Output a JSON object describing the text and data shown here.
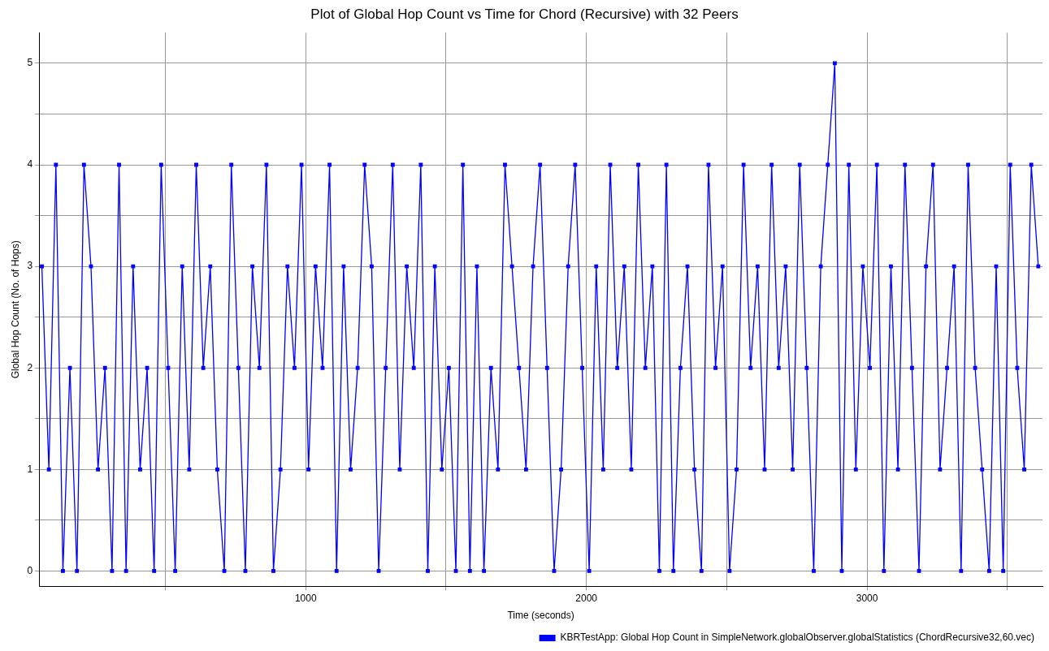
{
  "chart_data": {
    "type": "line",
    "title": "Plot of Global Hop Count vs Time for Chord (Recursive) with 32 Peers",
    "xlabel": "Time (seconds)",
    "ylabel": "Global Hop Count (No. of Hops)",
    "xlim": [
      50,
      3625
    ],
    "xticks": [
      {
        "value": 500,
        "label": null
      },
      1000,
      {
        "value": 1500,
        "label": null
      },
      2000,
      {
        "value": 2500,
        "label": null
      },
      3000,
      {
        "value": 3500,
        "label": null
      }
    ],
    "ylim": [
      -0.15,
      5.3
    ],
    "yticks": [
      0,
      {
        "value": 0.5,
        "label": null
      },
      1,
      {
        "value": 1.5,
        "label": null
      },
      2,
      {
        "value": 2.5,
        "label": null
      },
      3,
      {
        "value": 3.5,
        "label": null
      },
      4,
      {
        "value": 4.5,
        "label": null
      },
      5
    ],
    "grid": true,
    "legend": "bottom right",
    "marker": "square",
    "line_style": "solid",
    "x": [
      60,
      85,
      110,
      135,
      160,
      185,
      210,
      235,
      260,
      285,
      310,
      335,
      360,
      385,
      410,
      435,
      460,
      485,
      510,
      535,
      560,
      585,
      610,
      635,
      660,
      685,
      710,
      735,
      760,
      785,
      810,
      835,
      860,
      885,
      910,
      935,
      960,
      985,
      1010,
      1035,
      1060,
      1085,
      1110,
      1135,
      1160,
      1185,
      1210,
      1235,
      1260,
      1285,
      1310,
      1335,
      1360,
      1385,
      1410,
      1435,
      1460,
      1485,
      1510,
      1535,
      1560,
      1585,
      1610,
      1635,
      1660,
      1685,
      1710,
      1735,
      1760,
      1785,
      1810,
      1835,
      1860,
      1885,
      1910,
      1935,
      1960,
      1985,
      2010,
      2035,
      2060,
      2085,
      2110,
      2135,
      2160,
      2185,
      2210,
      2235,
      2260,
      2285,
      2310,
      2335,
      2360,
      2385,
      2410,
      2435,
      2460,
      2485,
      2510,
      2535,
      2560,
      2585,
      2610,
      2635,
      2660,
      2685,
      2710,
      2735,
      2760,
      2785,
      2810,
      2835,
      2860,
      2885,
      2910,
      2935,
      2960,
      2985,
      3010,
      3035,
      3060,
      3085,
      3110,
      3135,
      3160,
      3185,
      3210,
      3235,
      3260,
      3285,
      3310,
      3335,
      3360,
      3385,
      3410,
      3435,
      3460,
      3485,
      3510,
      3535,
      3560,
      3585,
      3610
    ],
    "series": [
      {
        "name": "KBRTestApp: Global Hop Count in SimpleNetwork.globalObserver.globalStatistics (ChordRecursive32,60.vec)",
        "color": "#0000ff",
        "values": [
          3,
          1,
          4,
          0,
          2,
          0,
          4,
          3,
          1,
          2,
          0,
          4,
          0,
          3,
          1,
          2,
          0,
          4,
          2,
          0,
          3,
          1,
          4,
          2,
          3,
          1,
          0,
          4,
          2,
          0,
          3,
          2,
          4,
          0,
          1,
          3,
          2,
          4,
          1,
          3,
          2,
          4,
          0,
          3,
          1,
          2,
          4,
          3,
          0,
          2,
          4,
          1,
          3,
          2,
          4,
          0,
          3,
          1,
          2,
          0,
          4,
          0,
          3,
          0,
          2,
          1,
          4,
          3,
          2,
          1,
          3,
          4,
          2,
          0,
          1,
          3,
          4,
          2,
          0,
          3,
          1,
          4,
          2,
          3,
          1,
          4,
          2,
          3,
          0,
          4,
          0,
          2,
          3,
          1,
          0,
          4,
          2,
          3,
          0,
          1,
          4,
          2,
          3,
          1,
          4,
          2,
          3,
          1,
          4,
          2,
          0,
          3,
          4,
          5,
          0,
          4,
          1,
          3,
          2,
          4,
          0,
          3,
          1,
          4,
          2,
          0,
          3,
          4,
          1,
          2,
          3,
          0,
          4,
          2,
          1,
          0,
          3,
          0,
          4,
          2,
          1,
          4,
          3
        ]
      }
    ]
  }
}
